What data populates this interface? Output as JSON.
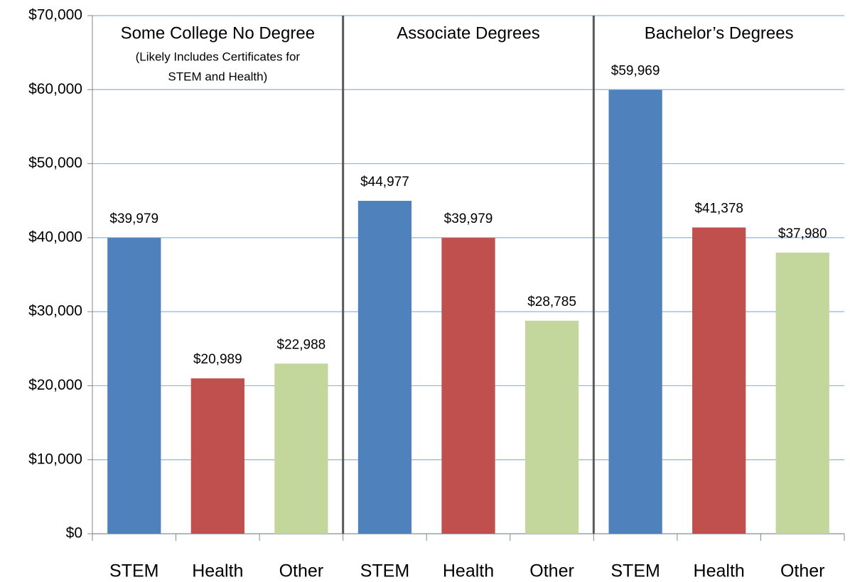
{
  "chart_data": {
    "type": "bar",
    "categories": [
      "STEM",
      "Health",
      "Other",
      "STEM",
      "Health",
      "Other",
      "STEM",
      "Health",
      "Other"
    ],
    "values": [
      39979,
      20989,
      22988,
      44977,
      39979,
      28785,
      59969,
      41378,
      37980
    ],
    "value_labels": [
      "$39,979",
      "$20,989",
      "$22,988",
      "$44,977",
      "$39,979",
      "$28,785",
      "$59,969",
      "$41,378",
      "$37,980"
    ],
    "colors": [
      "#4f81bd",
      "#c0504d",
      "#c3d69b",
      "#4f81bd",
      "#c0504d",
      "#c3d69b",
      "#4f81bd",
      "#c0504d",
      "#c3d69b"
    ],
    "groups": [
      {
        "title": "Some College No Degree",
        "subtitle_lines": [
          "(Likely Includes Certificates for",
          "STEM and Health)"
        ]
      },
      {
        "title": "Associate Degrees"
      },
      {
        "title": "Bachelor’s Degrees"
      }
    ],
    "ylim": [
      0,
      70000
    ],
    "yticks": [
      {
        "value": 0,
        "label": "$0"
      },
      {
        "value": 10000,
        "label": "$10,000"
      },
      {
        "value": 20000,
        "label": "$20,000"
      },
      {
        "value": 30000,
        "label": "$30,000"
      },
      {
        "value": 40000,
        "label": "$40,000"
      },
      {
        "value": 50000,
        "label": "$50,000"
      },
      {
        "value": 60000,
        "label": "$60,000"
      },
      {
        "value": 70000,
        "label": "$70,000"
      }
    ],
    "grid": true
  }
}
